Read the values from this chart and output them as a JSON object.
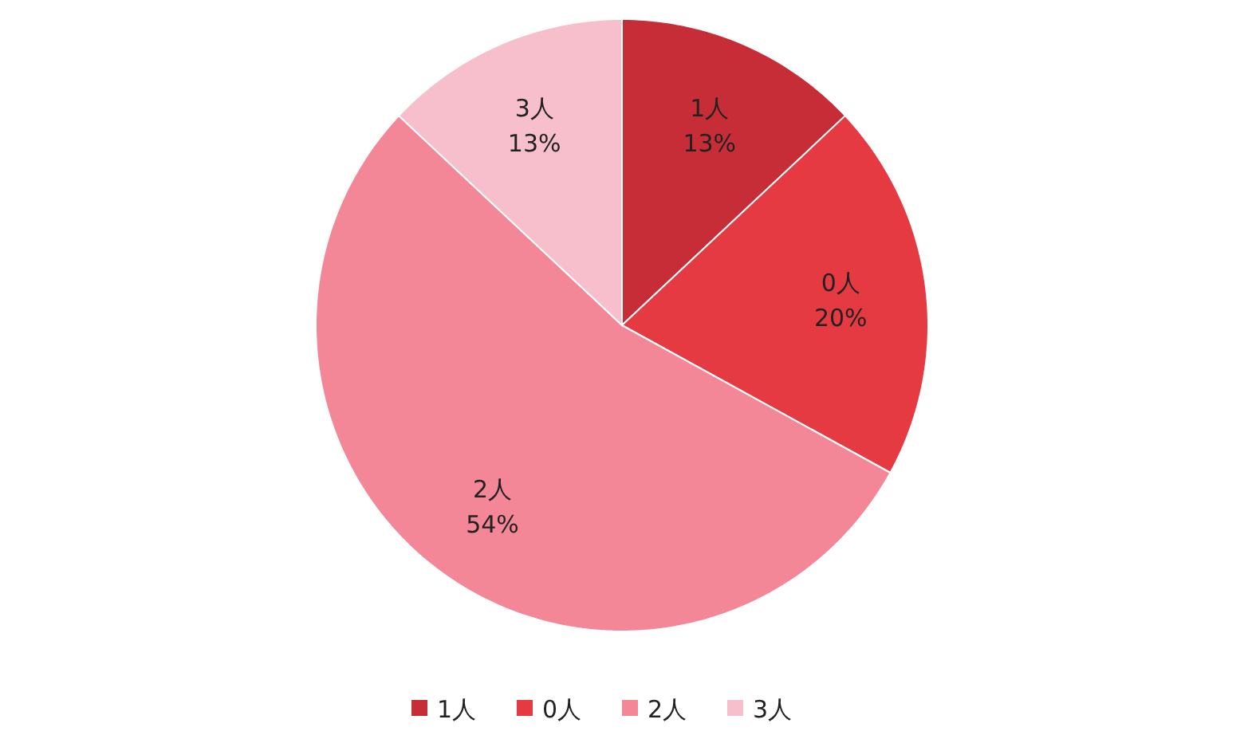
{
  "chart_data": {
    "type": "pie",
    "categories": [
      "1人",
      "0人",
      "2人",
      "3人"
    ],
    "values": [
      13,
      20,
      54,
      13
    ],
    "colors": [
      "#c72d36",
      "#e63a43",
      "#f48797",
      "#f7bfcc"
    ],
    "value_labels": [
      "13%",
      "20%",
      "54%",
      "13%"
    ],
    "legend": "bottom"
  }
}
